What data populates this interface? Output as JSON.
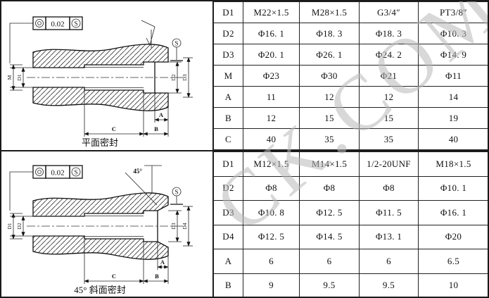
{
  "watermark": "CK.COM",
  "panels": [
    {
      "caption": "平面密封",
      "fcf": {
        "symbol": "concentricity",
        "value": "0.02",
        "modifier": "S"
      },
      "datum": "S",
      "angle_label": "",
      "dims": {
        "left_outer": "M",
        "left_inner": "D1",
        "right_inner": "D2",
        "right_outer": "D3",
        "a": "A",
        "b": "B",
        "c": "C"
      }
    },
    {
      "caption": "45° 斜面密封",
      "fcf": {
        "symbol": "concentricity",
        "value": "0.02",
        "modifier": "S"
      },
      "datum": "S",
      "angle_label": "45°",
      "dims": {
        "left_outer": "D1",
        "left_inner": "D2",
        "right_inner": "D3",
        "right_outer": "D4",
        "a": "A",
        "b": "B",
        "c": "C"
      }
    }
  ],
  "tables": [
    {
      "rows": [
        {
          "label": "D1",
          "values": [
            "M22×1.5",
            "M28×1.5",
            "G3/4″",
            "PT3/8″"
          ]
        },
        {
          "label": "D2",
          "values": [
            "Φ16. 1",
            "Φ18. 3",
            "Φ18. 3",
            "Φ10. 3"
          ]
        },
        {
          "label": "D3",
          "values": [
            "Φ20. 1",
            "Φ26. 1",
            "Φ24. 2",
            "Φ14. 9"
          ]
        },
        {
          "label": "M",
          "values": [
            "Φ23",
            "Φ30",
            "Φ21",
            "Φ11"
          ]
        },
        {
          "label": "A",
          "values": [
            "11",
            "12",
            "12",
            "14"
          ]
        },
        {
          "label": "B",
          "values": [
            "12",
            "15",
            "15",
            "19"
          ]
        },
        {
          "label": "C",
          "values": [
            "40",
            "35",
            "35",
            "40"
          ]
        }
      ]
    },
    {
      "rows": [
        {
          "label": "D1",
          "values": [
            "M12×1.5",
            "M14×1.5",
            "1/2-20UNF",
            "M18×1.5"
          ]
        },
        {
          "label": "D2",
          "values": [
            "Φ8",
            "Φ8",
            "Φ8",
            "Φ10. 1"
          ]
        },
        {
          "label": "D3",
          "values": [
            "Φ10. 8",
            "Φ12. 5",
            "Φ11. 5",
            "Φ16. 1"
          ]
        },
        {
          "label": "D4",
          "values": [
            "Φ12. 5",
            "Φ14. 5",
            "Φ13. 1",
            "Φ20"
          ]
        },
        {
          "label": "A",
          "values": [
            "6",
            "6",
            "6",
            "6.5"
          ]
        },
        {
          "label": "B",
          "values": [
            "9",
            "9.5",
            "9.5",
            "10"
          ]
        }
      ]
    }
  ]
}
